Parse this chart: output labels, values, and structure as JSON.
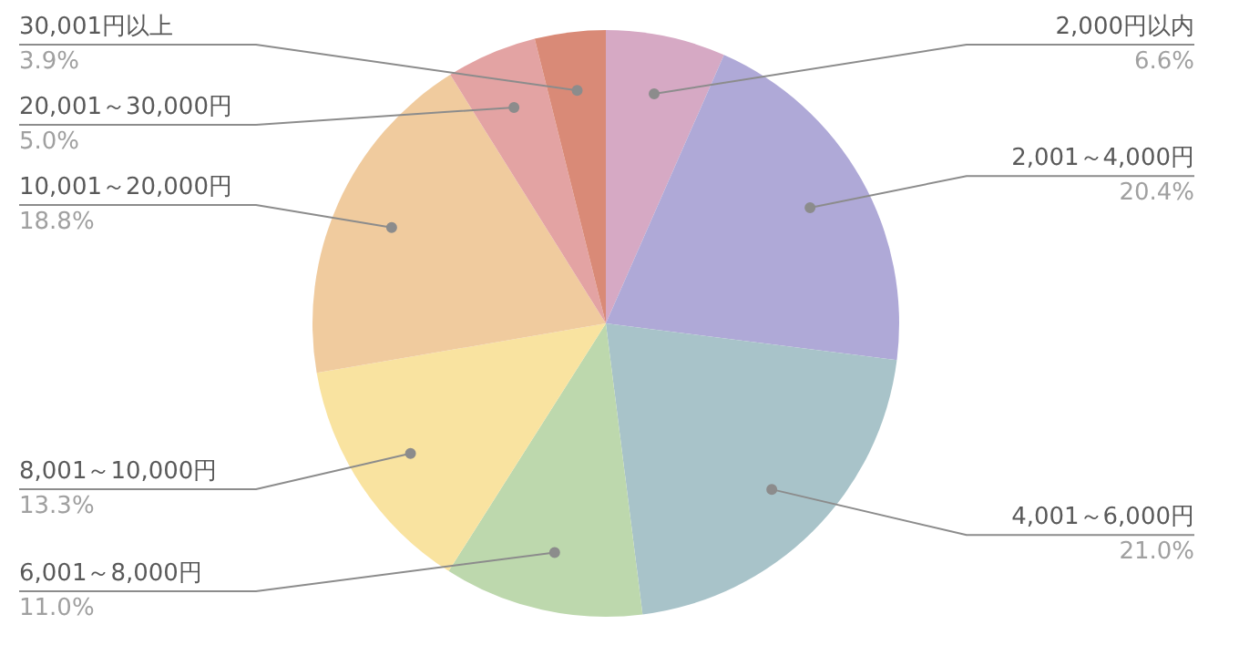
{
  "chart_data": {
    "type": "pie",
    "categories": [
      "2,000円以内",
      "2,001～4,000円",
      "4,001～6,000円",
      "6,001～8,000円",
      "8,001～10,000円",
      "10,001～20,000円",
      "20,001～30,000円",
      "30,001円以上"
    ],
    "values": [
      6.6,
      20.4,
      21.0,
      11.0,
      13.3,
      18.8,
      5.0,
      3.9
    ],
    "value_labels": [
      "6.6%",
      "20.4%",
      "21.0%",
      "11.0%",
      "13.3%",
      "18.8%",
      "5.0%",
      "3.9%"
    ],
    "colors": [
      "#d6a9c4",
      "#afa9d7",
      "#a8c3c9",
      "#bdd8ad",
      "#f9e3a0",
      "#f0cb9e",
      "#e3a3a3",
      "#d98a77"
    ]
  }
}
